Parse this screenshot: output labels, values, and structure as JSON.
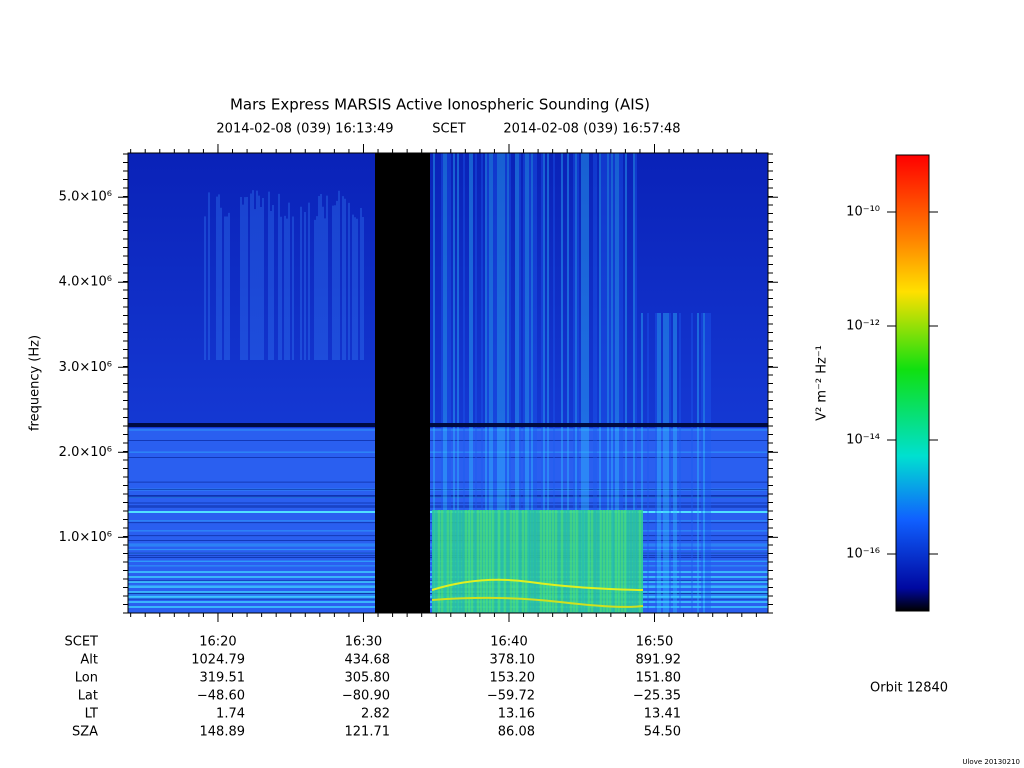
{
  "chart_data": {
    "type": "spectrogram",
    "title": "Mars Express MARSIS Active Ionospheric Sounding (AIS)",
    "start_time": "2014-02-08 (039) 16:13:49",
    "time_label": "SCET",
    "end_time": "2014-02-08 (039) 16:57:48",
    "y_label": "frequency (Hz)",
    "xlim": [
      973.8167,
      1017.8
    ],
    "xticks": [
      {
        "value": 980,
        "label": "16:20"
      },
      {
        "value": 990,
        "label": "16:30"
      },
      {
        "value": 1000,
        "label": "16:40"
      },
      {
        "value": 1010,
        "label": "16:50"
      }
    ],
    "ylim": [
      110000,
      5520000
    ],
    "yticks": [
      {
        "value": 1000000,
        "label": "1.0×10⁶"
      },
      {
        "value": 2000000,
        "label": "2.0×10⁶"
      },
      {
        "value": 3000000,
        "label": "3.0×10⁶"
      },
      {
        "value": 4000000,
        "label": "4.0×10⁶"
      },
      {
        "value": 5000000,
        "label": "5.0×10⁶"
      }
    ],
    "colorbar": {
      "label": "V² m⁻² Hz⁻¹",
      "log_scale": true,
      "clim": [
        1e-17,
        1e-09
      ],
      "ticks": [
        {
          "value": 1e-16,
          "label": "10⁻¹⁶"
        },
        {
          "value": 1e-14,
          "label": "10⁻¹⁴"
        },
        {
          "value": 1e-12,
          "label": "10⁻¹²"
        },
        {
          "value": 1e-10,
          "label": "10⁻¹⁰"
        }
      ]
    },
    "ephemeris": {
      "header": "SCET",
      "rows": [
        {
          "name": "Alt",
          "values": [
            "1024.79",
            "434.68",
            "378.10",
            "891.92"
          ]
        },
        {
          "name": "Lon",
          "values": [
            "319.51",
            "305.80",
            "153.20",
            "151.80"
          ]
        },
        {
          "name": "Lat",
          "values": [
            "−48.60",
            "−80.90",
            "−59.72",
            "−25.35"
          ]
        },
        {
          "name": "LT",
          "values": [
            "1.74",
            "2.82",
            "13.16",
            "13.41"
          ]
        },
        {
          "name": "SZA",
          "values": [
            "148.89",
            "121.71",
            "86.08",
            "54.50"
          ]
        }
      ]
    },
    "orbit": "Orbit 12840",
    "footer": "Ulove 20130210"
  }
}
